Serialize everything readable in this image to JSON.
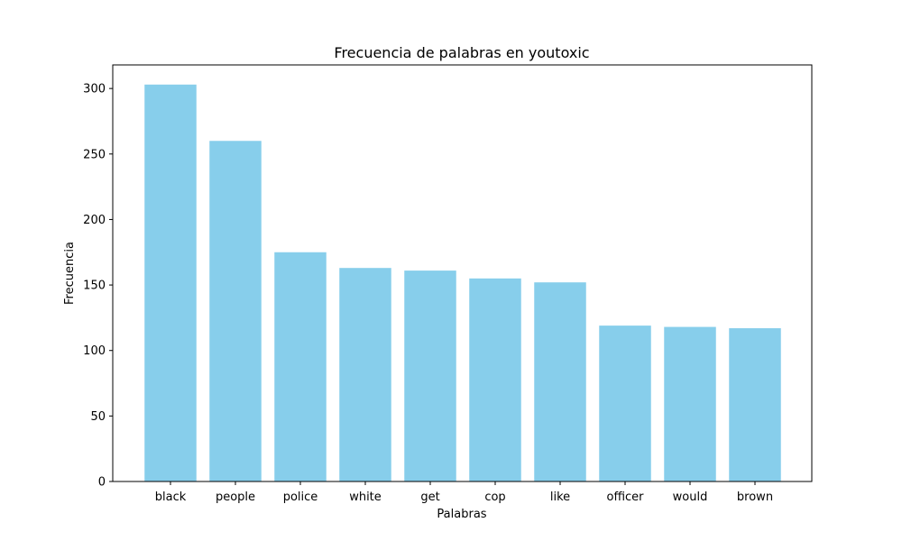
{
  "chart_data": {
    "type": "bar",
    "title": "Frecuencia de palabras en youtoxic",
    "xlabel": "Palabras",
    "ylabel": "Frecuencia",
    "categories": [
      "black",
      "people",
      "police",
      "white",
      "get",
      "cop",
      "like",
      "officer",
      "would",
      "brown"
    ],
    "values": [
      303,
      260,
      175,
      163,
      161,
      155,
      152,
      119,
      118,
      117
    ],
    "ylim": [
      0,
      318
    ],
    "yticks": [
      0,
      50,
      100,
      150,
      200,
      250,
      300
    ],
    "grid": false,
    "bar_color": "#87CEEB"
  }
}
